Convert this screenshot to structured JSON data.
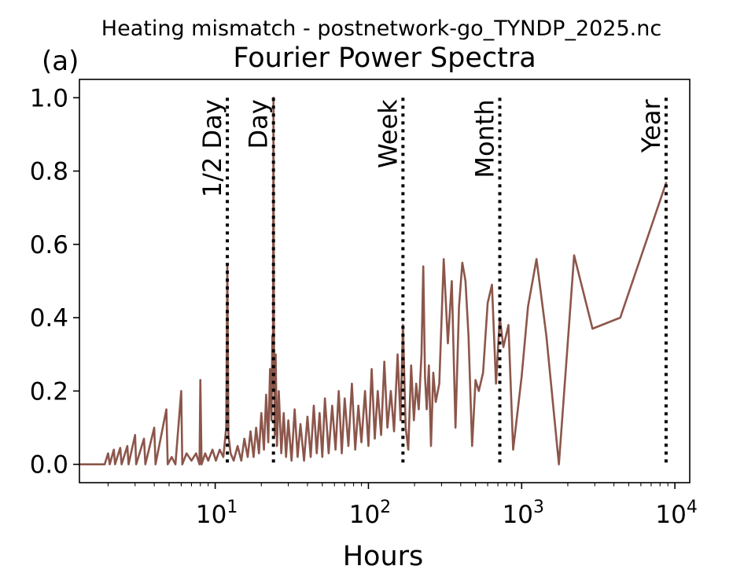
{
  "figure": {
    "suptitle": "Heating mismatch - postnetwork-go_TYNDP_2025.nc",
    "panel_label": "(a)"
  },
  "chart_data": {
    "type": "line",
    "title": "Fourier Power Spectra",
    "xlabel": "Hours",
    "ylabel": "",
    "xscale": "log",
    "xlim": [
      1.3,
      12500
    ],
    "ylim": [
      -0.05,
      1.05
    ],
    "grid": false,
    "legend": "none",
    "line_color": "#8c564b",
    "x_tick_labels": [
      {
        "base": "10",
        "exp": "1",
        "value": 10
      },
      {
        "base": "10",
        "exp": "2",
        "value": 100
      },
      {
        "base": "10",
        "exp": "3",
        "value": 1000
      },
      {
        "base": "10",
        "exp": "4",
        "value": 10000
      }
    ],
    "y_ticks": [
      0.0,
      0.2,
      0.4,
      0.6,
      0.8,
      1.0
    ],
    "y_tick_labels": [
      "0.0",
      "0.2",
      "0.4",
      "0.6",
      "0.8",
      "1.0"
    ],
    "reference_lines": [
      {
        "label": "1/2 Day",
        "x": 12
      },
      {
        "label": "Day",
        "x": 24
      },
      {
        "label": "Week",
        "x": 168
      },
      {
        "label": "Month",
        "x": 720
      },
      {
        "label": "Year",
        "x": 8760
      }
    ],
    "series": [
      {
        "points": [
          [
            1.3,
            0.0
          ],
          [
            1.9,
            0.0
          ],
          [
            2.0,
            0.03
          ],
          [
            2.05,
            0.0
          ],
          [
            2.18,
            0.04
          ],
          [
            2.22,
            0.0
          ],
          [
            2.4,
            0.045
          ],
          [
            2.45,
            0.0
          ],
          [
            2.67,
            0.05
          ],
          [
            2.72,
            0.0
          ],
          [
            3.0,
            0.08
          ],
          [
            3.05,
            0.0
          ],
          [
            3.43,
            0.07
          ],
          [
            3.5,
            0.0
          ],
          [
            4.0,
            0.1
          ],
          [
            4.08,
            0.0
          ],
          [
            4.8,
            0.15
          ],
          [
            4.9,
            0.0
          ],
          [
            5.2,
            0.02
          ],
          [
            5.5,
            0.0
          ],
          [
            6.0,
            0.2
          ],
          [
            6.1,
            0.0
          ],
          [
            6.5,
            0.03
          ],
          [
            7.0,
            0.01
          ],
          [
            7.5,
            0.03
          ],
          [
            7.9,
            0.0
          ],
          [
            8.0,
            0.23
          ],
          [
            8.15,
            0.0
          ],
          [
            8.6,
            0.03
          ],
          [
            9.0,
            0.01
          ],
          [
            9.6,
            0.04
          ],
          [
            10.1,
            0.01
          ],
          [
            10.7,
            0.04
          ],
          [
            11.3,
            0.02
          ],
          [
            11.8,
            0.1
          ],
          [
            12.0,
            0.54
          ],
          [
            12.2,
            0.08
          ],
          [
            12.6,
            0.03
          ],
          [
            13.2,
            0.01
          ],
          [
            14.0,
            0.05
          ],
          [
            14.8,
            0.01
          ],
          [
            15.5,
            0.07
          ],
          [
            16.3,
            0.02
          ],
          [
            17.0,
            0.09
          ],
          [
            17.8,
            0.02
          ],
          [
            18.5,
            0.1
          ],
          [
            19.3,
            0.03
          ],
          [
            20.0,
            0.14
          ],
          [
            20.8,
            0.04
          ],
          [
            21.5,
            0.19
          ],
          [
            22.2,
            0.06
          ],
          [
            22.8,
            0.26
          ],
          [
            23.3,
            0.12
          ],
          [
            23.6,
            0.35
          ],
          [
            23.8,
            0.2
          ],
          [
            24.0,
            1.0
          ],
          [
            24.2,
            0.3
          ],
          [
            24.5,
            0.08
          ],
          [
            24.8,
            0.3
          ],
          [
            25.3,
            0.05
          ],
          [
            26.0,
            0.2
          ],
          [
            27.0,
            0.03
          ],
          [
            28.0,
            0.14
          ],
          [
            29.0,
            0.02
          ],
          [
            30.0,
            0.12
          ],
          [
            31.5,
            0.01
          ],
          [
            33.0,
            0.15
          ],
          [
            34.5,
            0.02
          ],
          [
            36.0,
            0.11
          ],
          [
            38.0,
            0.01
          ],
          [
            40.0,
            0.13
          ],
          [
            42.0,
            0.02
          ],
          [
            44.0,
            0.16
          ],
          [
            46.0,
            0.03
          ],
          [
            48.0,
            0.14
          ],
          [
            50.0,
            0.02
          ],
          [
            52.0,
            0.18
          ],
          [
            55.0,
            0.03
          ],
          [
            58.0,
            0.16
          ],
          [
            61.0,
            0.04
          ],
          [
            64.0,
            0.2
          ],
          [
            67.0,
            0.03
          ],
          [
            70.0,
            0.18
          ],
          [
            74.0,
            0.05
          ],
          [
            78.0,
            0.22
          ],
          [
            82.0,
            0.04
          ],
          [
            86.0,
            0.16
          ],
          [
            90.0,
            0.06
          ],
          [
            95.0,
            0.2
          ],
          [
            100.0,
            0.05
          ],
          [
            105.0,
            0.26
          ],
          [
            110.0,
            0.07
          ],
          [
            115.0,
            0.2
          ],
          [
            121.0,
            0.08
          ],
          [
            127.0,
            0.28
          ],
          [
            133.0,
            0.1
          ],
          [
            140.0,
            0.2
          ],
          [
            147.0,
            0.09
          ],
          [
            155.0,
            0.3
          ],
          [
            162.0,
            0.12
          ],
          [
            168.0,
            0.38
          ],
          [
            175.0,
            0.1
          ],
          [
            182.0,
            0.04
          ],
          [
            190.0,
            0.27
          ],
          [
            198.0,
            0.12
          ],
          [
            205.0,
            0.22
          ],
          [
            213.0,
            0.15
          ],
          [
            222.0,
            0.3
          ],
          [
            228.0,
            0.54
          ],
          [
            234.0,
            0.24
          ],
          [
            240.0,
            0.15
          ],
          [
            248.0,
            0.27
          ],
          [
            256.0,
            0.05
          ],
          [
            265.0,
            0.25
          ],
          [
            275.0,
            0.17
          ],
          [
            290.0,
            0.22
          ],
          [
            310.0,
            0.56
          ],
          [
            330.0,
            0.33
          ],
          [
            350.0,
            0.5
          ],
          [
            370.0,
            0.1
          ],
          [
            390.0,
            0.43
          ],
          [
            410.0,
            0.55
          ],
          [
            430.0,
            0.5
          ],
          [
            450.0,
            0.35
          ],
          [
            475.0,
            0.05
          ],
          [
            500.0,
            0.23
          ],
          [
            525.0,
            0.2
          ],
          [
            560.0,
            0.25
          ],
          [
            600.0,
            0.44
          ],
          [
            640.0,
            0.49
          ],
          [
            680.0,
            0.22
          ],
          [
            720.0,
            0.4
          ],
          [
            760.0,
            0.32
          ],
          [
            820.0,
            0.38
          ],
          [
            880.0,
            0.04
          ],
          [
            1000.0,
            0.24
          ],
          [
            1100.0,
            0.43
          ],
          [
            1250.0,
            0.56
          ],
          [
            1450.0,
            0.35
          ],
          [
            1750.0,
            0.0
          ],
          [
            2200.0,
            0.57
          ],
          [
            2900.0,
            0.37
          ],
          [
            4400.0,
            0.4
          ],
          [
            8800.0,
            0.77
          ]
        ]
      }
    ]
  }
}
